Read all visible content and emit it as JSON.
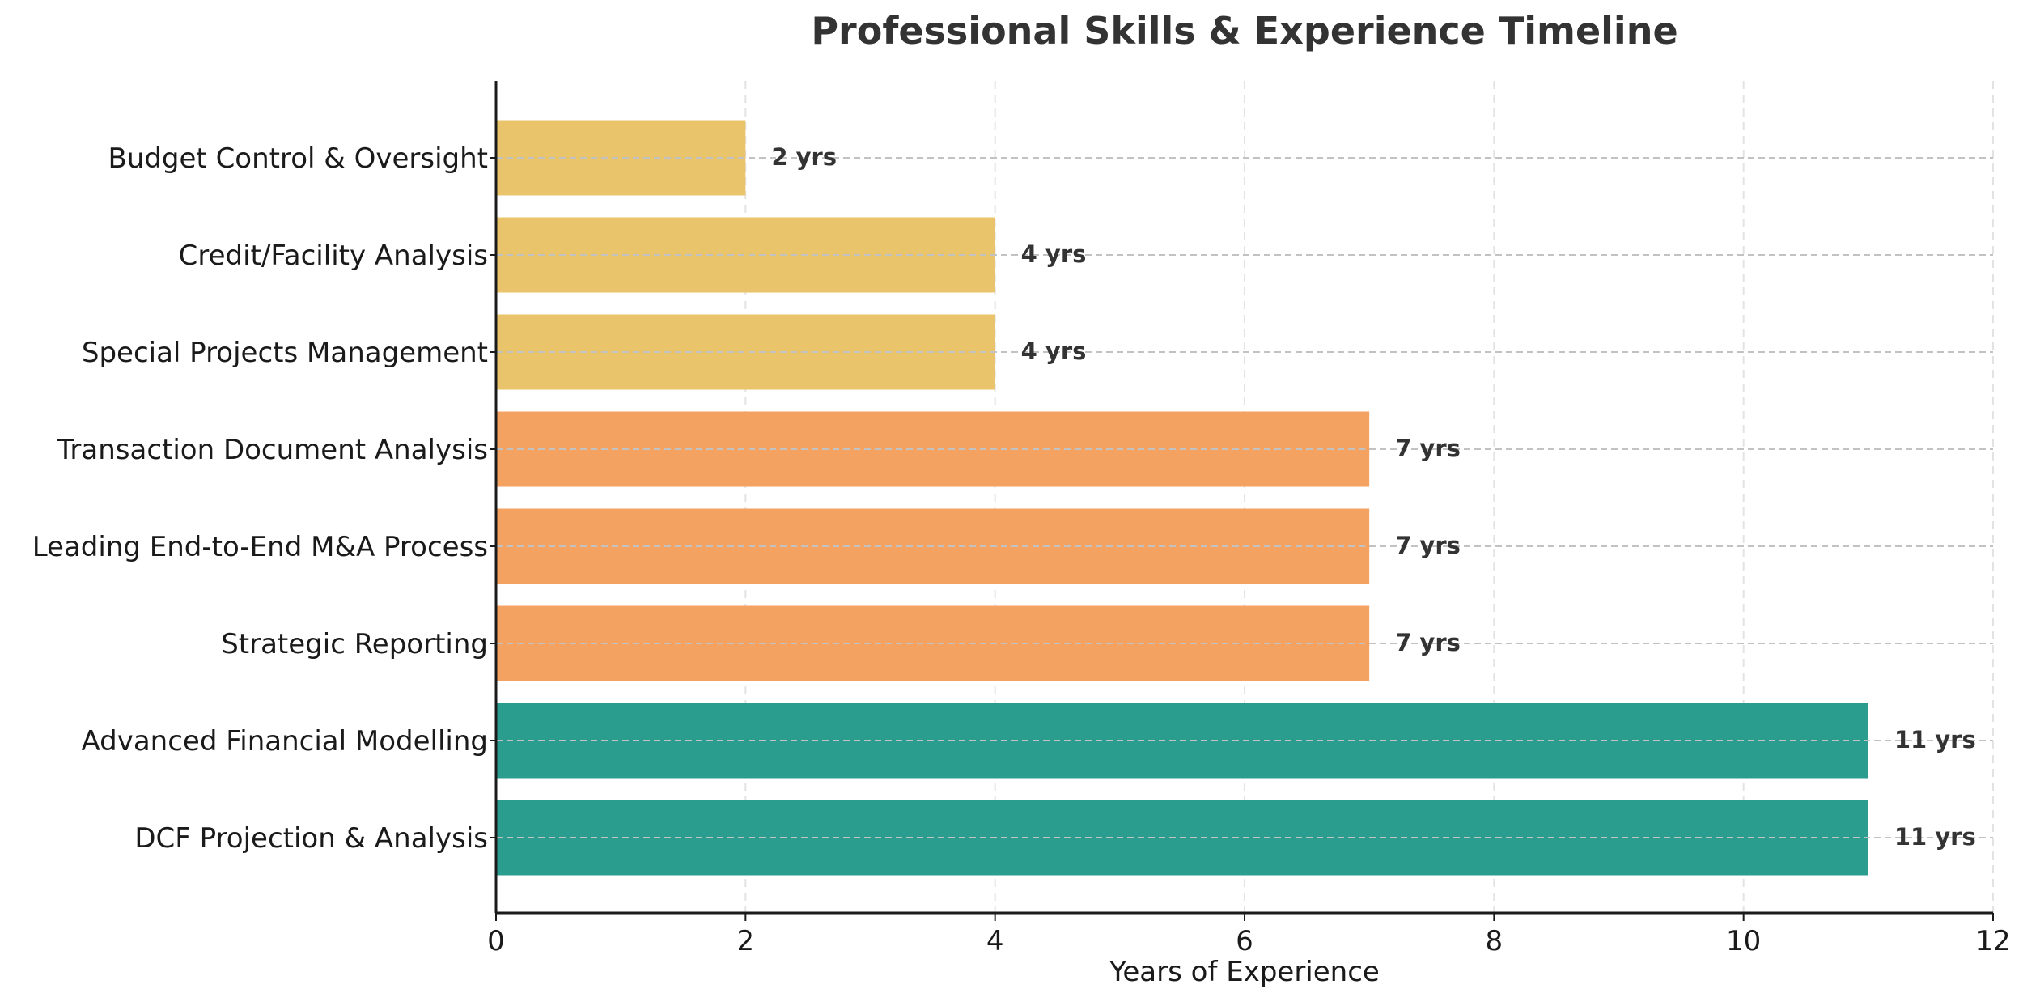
{
  "chart_data": {
    "type": "bar",
    "orientation": "horizontal",
    "title": "Professional Skills & Experience Timeline",
    "xlabel": "Years of Experience",
    "ylabel": "",
    "xlim": [
      0,
      12
    ],
    "xticks": [
      0,
      2,
      4,
      6,
      8,
      10,
      12
    ],
    "grid": true,
    "categories": [
      "Budget Control & Oversight",
      "Credit/Facility Analysis",
      "Special Projects Management",
      "Transaction Document Analysis",
      "Leading End-to-End M&A Process",
      "Strategic Reporting",
      "Advanced Financial Modelling",
      "DCF Projection & Analysis"
    ],
    "values": [
      2,
      4,
      4,
      7,
      7,
      7,
      11,
      11
    ],
    "data_labels": [
      "2 yrs",
      "4 yrs",
      "4 yrs",
      "7 yrs",
      "7 yrs",
      "7 yrs",
      "11 yrs",
      "11 yrs"
    ],
    "colors": [
      "#e9c46a",
      "#e9c46a",
      "#e9c46a",
      "#f4a261",
      "#f4a261",
      "#f4a261",
      "#2a9d8f",
      "#2a9d8f"
    ]
  }
}
